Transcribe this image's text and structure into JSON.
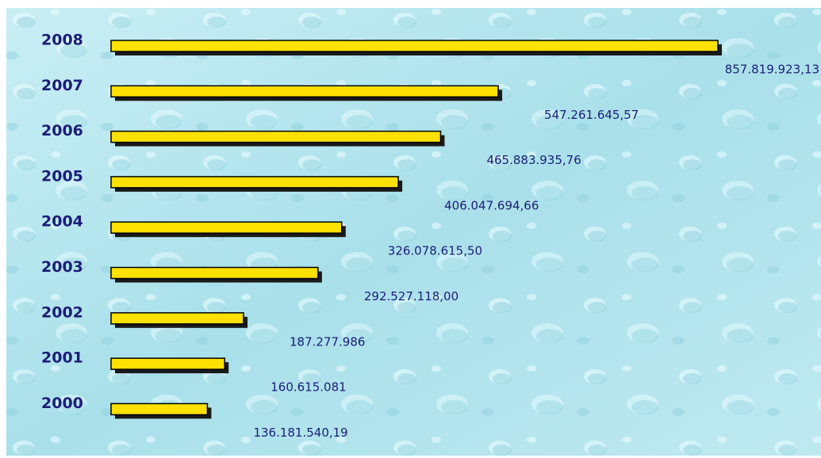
{
  "chart_data": {
    "type": "bar",
    "orientation": "horizontal",
    "categories": [
      "2008",
      "2007",
      "2006",
      "2005",
      "2004",
      "2003",
      "2002",
      "2001",
      "2000"
    ],
    "values": [
      857819923.13,
      547261645.57,
      465883935.76,
      406047694.66,
      326078615.5,
      292527118.0,
      187277986,
      160615081,
      136181540.19
    ],
    "value_labels": [
      "857.819.923,13",
      "547.261.645,57",
      "465.883.935,76",
      "406.047.694,66",
      "326.078.615,50",
      "292.527.118,00",
      "187.277.986",
      "160.615.081",
      "136.181.540,19"
    ],
    "color": "#ffe100"
  }
}
